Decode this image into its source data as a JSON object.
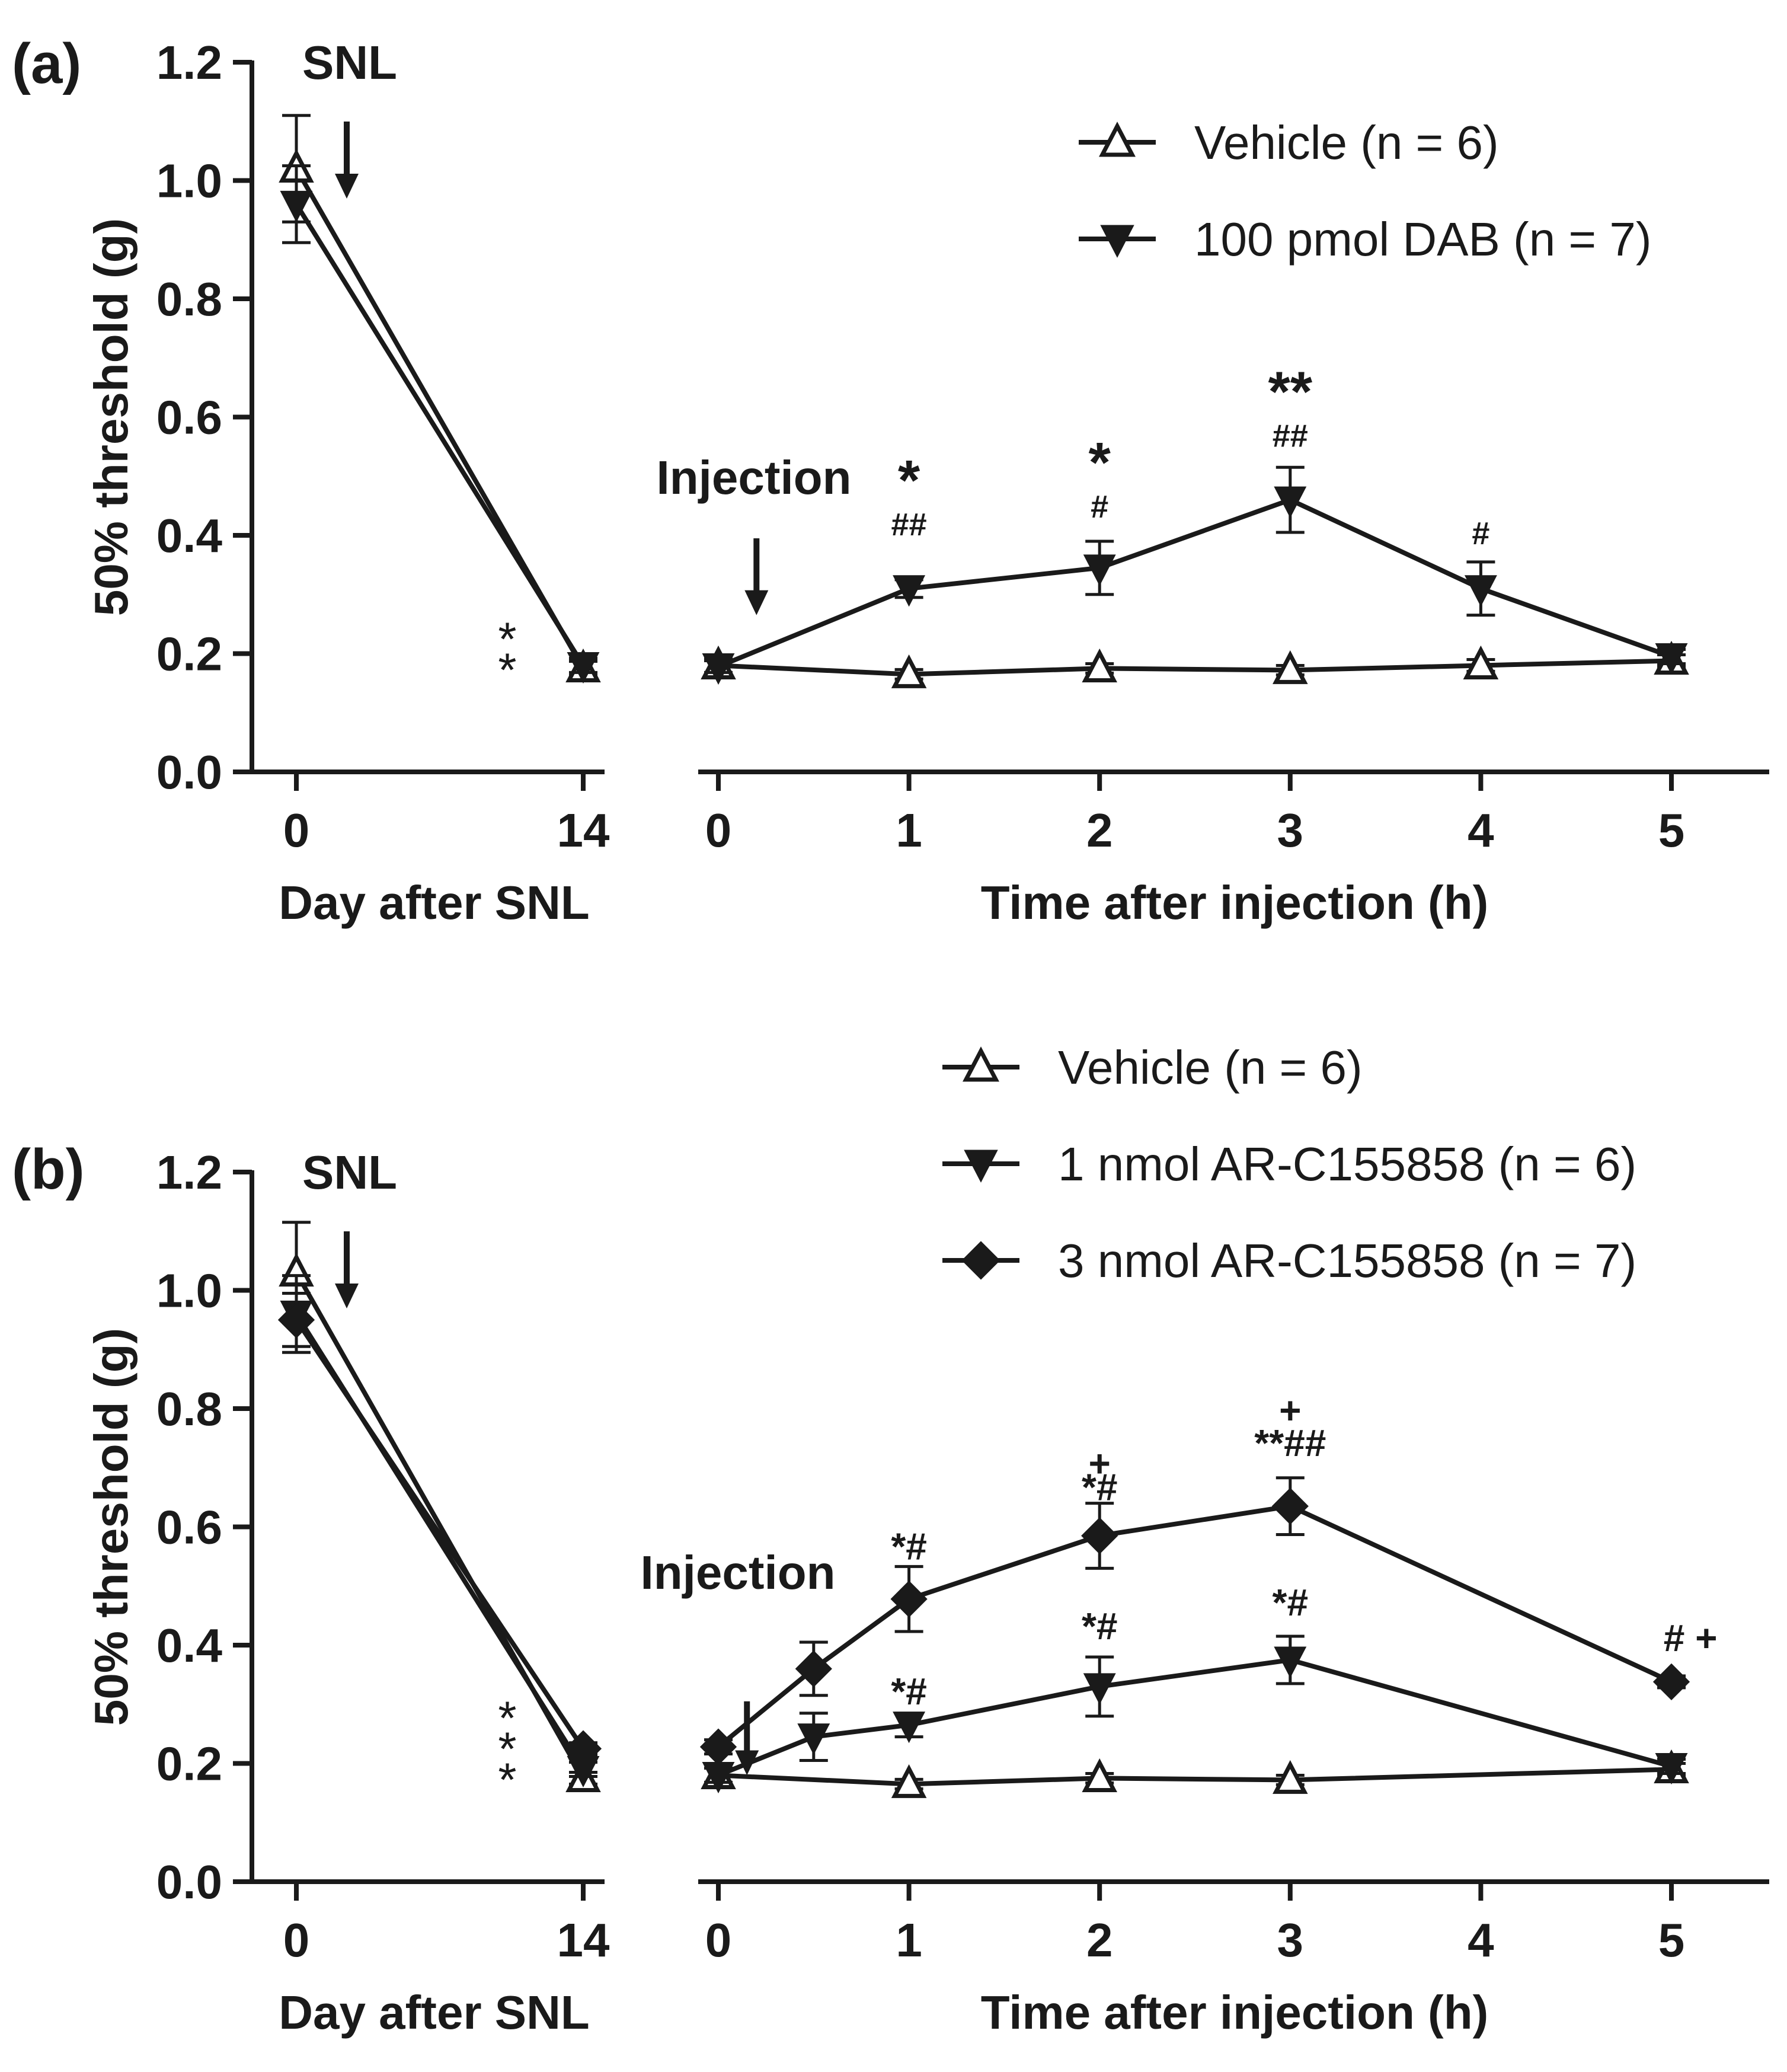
{
  "chart_data": [
    {
      "type": "line",
      "panel_label": "(a)",
      "ylabel": "50% threshold (g)",
      "ylim": [
        0,
        1.2
      ],
      "y_ticks": [
        "0.0",
        "0.2",
        "0.4",
        "0.6",
        "0.8",
        "1.0",
        "1.2"
      ],
      "baseline": {
        "xlabel": "Day after SNL",
        "x_ticks": [
          "0",
          "14"
        ],
        "arrow_label": "SNL",
        "x": [
          0,
          14
        ],
        "series": [
          {
            "name": "Vehicle (n = 6)",
            "marker": "triangle-up-open",
            "values": [
              1.02,
              0.175
            ],
            "err": [
              0.09,
              0.012
            ]
          },
          {
            "name": "100 pmol DAB (n = 7)",
            "marker": "triangle-down-filled",
            "values": [
              0.96,
              0.18
            ],
            "err": [
              0.065,
              0.012
            ]
          }
        ],
        "annotations": [
          {
            "x": 14,
            "y": 0.17,
            "text": "**",
            "layout": "vertical"
          }
        ]
      },
      "time": {
        "xlabel": "Time after injection (h)",
        "x_ticks": [
          "0",
          "1",
          "2",
          "3",
          "4",
          "5"
        ],
        "xlim": [
          0,
          5.5
        ],
        "arrow_label": "Injection",
        "arrow_x": 0.2,
        "series": [
          {
            "name": "Vehicle (n = 6)",
            "marker": "triangle-up-open",
            "x": [
              0,
              1,
              2,
              3,
              4,
              5
            ],
            "values": [
              0.18,
              0.165,
              0.175,
              0.172,
              0.18,
              0.188
            ],
            "err": [
              0.012,
              0.008,
              0.008,
              0.008,
              0.01,
              0.01
            ]
          },
          {
            "name": "100 pmol DAB (n = 7)",
            "marker": "triangle-down-filled",
            "x": [
              0,
              1,
              2,
              3,
              4,
              5
            ],
            "values": [
              0.178,
              0.31,
              0.345,
              0.46,
              0.31,
              0.195
            ],
            "err": [
              0.01,
              0.015,
              0.045,
              0.055,
              0.045,
              0.012
            ]
          }
        ],
        "annotations": [
          {
            "x": 1,
            "y": 0.46,
            "text": "*",
            "size": "large"
          },
          {
            "x": 1,
            "y": 0.4,
            "text": "##",
            "size": "small"
          },
          {
            "x": 2,
            "y": 0.49,
            "text": "*",
            "size": "large"
          },
          {
            "x": 2,
            "y": 0.43,
            "text": "#",
            "size": "small"
          },
          {
            "x": 3,
            "y": 0.61,
            "text": "**",
            "size": "large"
          },
          {
            "x": 3,
            "y": 0.55,
            "text": "##",
            "size": "small"
          },
          {
            "x": 4,
            "y": 0.385,
            "text": "#",
            "size": "small"
          }
        ]
      },
      "legend": {
        "placement": "top-right",
        "entries": [
          {
            "label": "Vehicle (n = 6)",
            "marker": "triangle-up-open"
          },
          {
            "label": "100 pmol DAB (n = 7)",
            "marker": "triangle-down-filled"
          }
        ]
      }
    },
    {
      "type": "line",
      "panel_label": "(b)",
      "ylabel": "50% threshold (g)",
      "ylim": [
        0,
        1.2
      ],
      "y_ticks": [
        "0.0",
        "0.2",
        "0.4",
        "0.6",
        "0.8",
        "1.0",
        "1.2"
      ],
      "baseline": {
        "xlabel": "Day after SNL",
        "x_ticks": [
          "0",
          "14"
        ],
        "arrow_label": "SNL",
        "x": [
          0,
          14
        ],
        "series": [
          {
            "name": "Vehicle (n = 6)",
            "marker": "triangle-up-open",
            "values": [
              1.03,
              0.175
            ],
            "err": [
              0.085,
              0.01
            ]
          },
          {
            "name": "1 nmol AR-C155858 (n = 6)",
            "marker": "triangle-down-filled",
            "values": [
              0.96,
              0.19
            ],
            "err": [
              0.065,
              0.012
            ]
          },
          {
            "name": "3 nmol AR-C155858 (n = 7)",
            "marker": "diamond-filled",
            "values": [
              0.95,
              0.225
            ],
            "err": [
              0.045,
              0.01
            ]
          }
        ],
        "annotations": [
          {
            "x": 14,
            "y": 0.17,
            "text": "***",
            "layout": "vertical"
          }
        ]
      },
      "time": {
        "xlabel": "Time after injection (h)",
        "x_ticks": [
          "0",
          "1",
          "2",
          "3",
          "4",
          "5"
        ],
        "xlim": [
          0,
          5.5
        ],
        "arrow_label": "Injection",
        "arrow_x": 0.15,
        "series": [
          {
            "name": "Vehicle (n = 6)",
            "marker": "triangle-up-open",
            "x": [
              0,
              1,
              2,
              3,
              5
            ],
            "values": [
              0.18,
              0.165,
              0.175,
              0.172,
              0.19
            ],
            "err": [
              0.012,
              0.008,
              0.008,
              0.008,
              0.01
            ]
          },
          {
            "name": "1 nmol AR-C155858 (n = 6)",
            "marker": "triangle-down-filled",
            "x": [
              0,
              0.5,
              1,
              2,
              3,
              5
            ],
            "values": [
              0.18,
              0.245,
              0.265,
              0.33,
              0.375,
              0.195
            ],
            "err": [
              0.012,
              0.04,
              0.02,
              0.05,
              0.04,
              0.012
            ]
          },
          {
            "name": "3 nmol AR-C155858 (n = 7)",
            "marker": "diamond-filled",
            "x": [
              0,
              0.5,
              1,
              2,
              3,
              5
            ],
            "values": [
              0.228,
              0.36,
              0.478,
              0.585,
              0.635,
              0.338
            ],
            "err": [
              0.012,
              0.045,
              0.055,
              0.055,
              0.048,
              0.01
            ]
          }
        ],
        "annotations": [
          {
            "x": 1,
            "y": 0.545,
            "text": "*#",
            "size": "medium"
          },
          {
            "x": 2,
            "y": 0.685,
            "text": "+",
            "size": "medium"
          },
          {
            "x": 2,
            "y": 0.645,
            "text": "*#",
            "size": "medium"
          },
          {
            "x": 3,
            "y": 0.775,
            "text": "+",
            "size": "medium"
          },
          {
            "x": 3,
            "y": 0.72,
            "text": "**##",
            "size": "medium"
          },
          {
            "x": 1,
            "y": 0.3,
            "text": "*#",
            "size": "medium"
          },
          {
            "x": 2,
            "y": 0.41,
            "text": "*#",
            "size": "medium"
          },
          {
            "x": 3,
            "y": 0.45,
            "text": "*#",
            "size": "medium"
          },
          {
            "x": 5.1,
            "y": 0.39,
            "text": "# +",
            "size": "medium"
          }
        ]
      },
      "legend": {
        "placement": "top-right",
        "entries": [
          {
            "label": "Vehicle (n = 6)",
            "marker": "triangle-up-open"
          },
          {
            "label": "1 nmol AR-C155858 (n = 6)",
            "marker": "triangle-down-filled"
          },
          {
            "label": "3 nmol AR-C155858 (n = 7)",
            "marker": "diamond-filled"
          }
        ]
      }
    }
  ]
}
